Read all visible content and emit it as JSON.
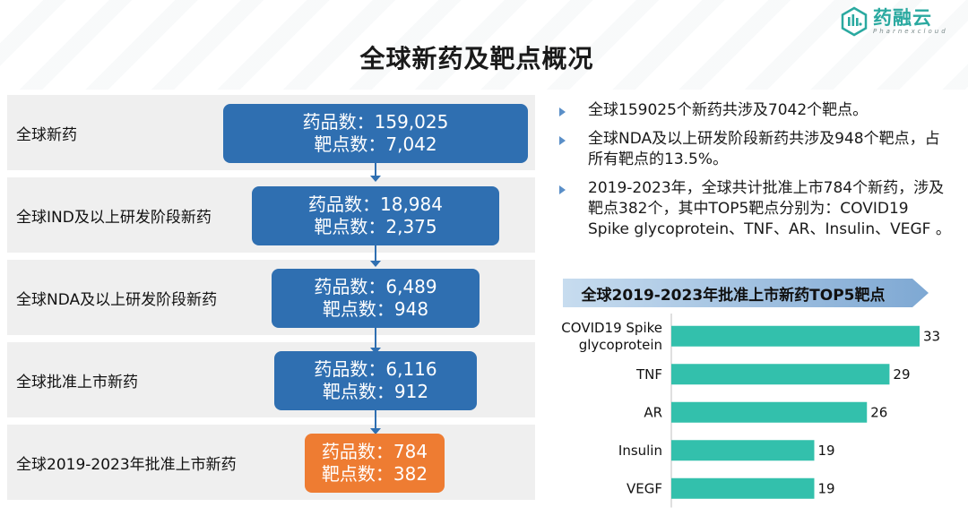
{
  "title": "全球新药及靶点概况",
  "logo": {
    "cn": "药融云",
    "en": "Pharnexcloud"
  },
  "colors": {
    "blue": "#2f6fb1",
    "orange": "#ee7c32",
    "teal_bar": "#33c0ac",
    "banner": "#8eb3d6"
  },
  "funnel": [
    {
      "label": "全球新药",
      "drug_label": "药品数：",
      "drugs": "159,025",
      "target_label": "靶点数：",
      "targets": "7,042"
    },
    {
      "label": "全球IND及以上研发阶段新药",
      "drug_label": "药品数：",
      "drugs": "18,984",
      "target_label": "靶点数：",
      "targets": "2,375"
    },
    {
      "label": "全球NDA及以上研发阶段新药",
      "drug_label": "药品数：",
      "drugs": "6,489",
      "target_label": "靶点数：",
      "targets": "948"
    },
    {
      "label": "全球批准上市新药",
      "drug_label": "药品数：",
      "drugs": "6,116",
      "target_label": "靶点数：",
      "targets": "912"
    },
    {
      "label": "全球2019-2023年批准上市新药",
      "drug_label": "药品数：",
      "drugs": "784",
      "target_label": "靶点数：",
      "targets": "382"
    }
  ],
  "bullets": [
    "全球159025个新药共涉及7042个靶点。",
    "全球NDA及以上研发阶段新药共涉及948个靶点，占所有靶点的13.5%。",
    "2019-2023年，全球共计批准上市784个新药，涉及靶点382个，其中TOP5靶点分别为：COVID19 Spike glycoprotein、TNF、AR、Insulin、VEGF 。"
  ],
  "chart_data": {
    "type": "bar",
    "orientation": "horizontal",
    "title": "全球2019-2023年批准上市新药TOP5靶点",
    "categories": [
      "COVID19 Spike glycoprotein",
      "TNF",
      "AR",
      "Insulin",
      "VEGF"
    ],
    "category_lines": [
      [
        "COVID19 Spike",
        "glycoprotein"
      ],
      [
        "TNF"
      ],
      [
        "AR"
      ],
      [
        "Insulin"
      ],
      [
        "VEGF"
      ]
    ],
    "values": [
      33,
      29,
      26,
      19,
      19
    ],
    "xlim": [
      0,
      33
    ],
    "grid": false,
    "data_labels": true
  }
}
